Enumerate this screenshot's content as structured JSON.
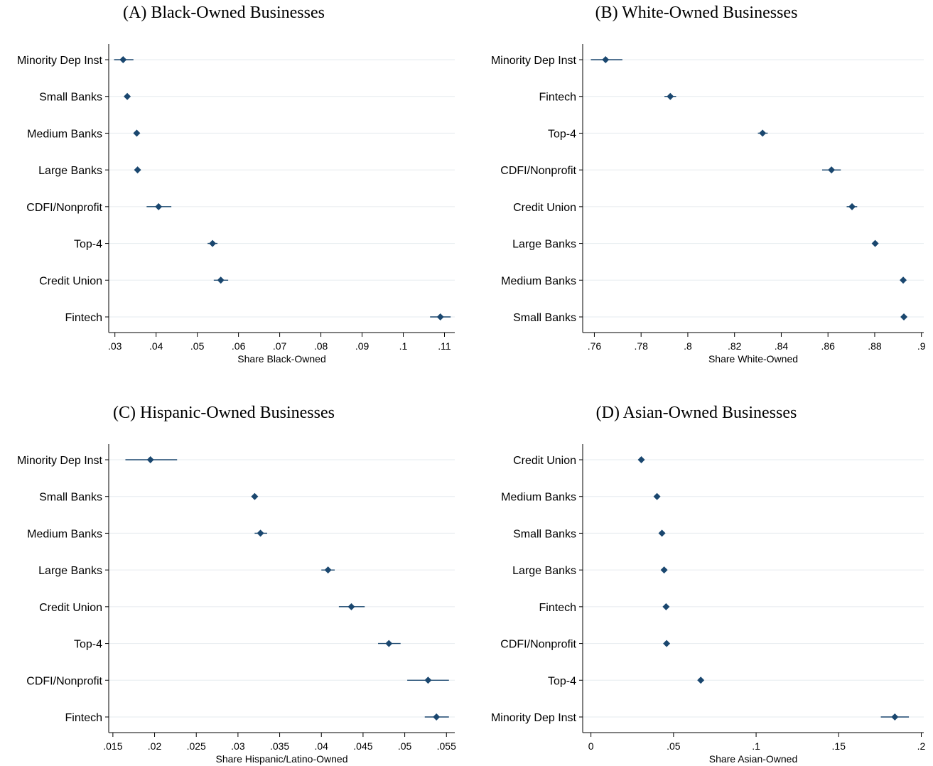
{
  "chart_data": [
    {
      "type": "scatter",
      "title": "(A) Black-Owned Businesses",
      "xlabel": "Share Black-Owned",
      "xlim": [
        0.0285,
        0.1125
      ],
      "xticks": [
        ".03",
        ".04",
        ".05",
        ".06",
        ".07",
        ".08",
        ".09",
        ".1",
        ".11"
      ],
      "xtick_values": [
        0.03,
        0.04,
        0.05,
        0.06,
        0.07,
        0.08,
        0.09,
        0.1,
        0.11
      ],
      "categories": [
        "Minority Dep Inst",
        "Small Banks",
        "Medium Banks",
        "Large Banks",
        "CDFI/Nonprofit",
        "Top-4",
        "Credit Union",
        "Fintech"
      ],
      "values": [
        0.032,
        0.033,
        0.0353,
        0.0355,
        0.0406,
        0.0537,
        0.0557,
        0.109
      ],
      "ci_low": [
        0.0298,
        0.0325,
        0.0347,
        0.0348,
        0.0377,
        0.0525,
        0.054,
        0.1065
      ],
      "ci_high": [
        0.0345,
        0.0335,
        0.0359,
        0.0362,
        0.0437,
        0.0549,
        0.0575,
        0.1115
      ]
    },
    {
      "type": "scatter",
      "title": "(B) White-Owned Businesses",
      "xlabel": "Share White-Owned",
      "xlim": [
        0.755,
        0.901
      ],
      "xticks": [
        ".76",
        ".78",
        ".8",
        ".82",
        ".84",
        ".86",
        ".88",
        ".9"
      ],
      "xtick_values": [
        0.76,
        0.78,
        0.8,
        0.82,
        0.84,
        0.86,
        0.88,
        0.9
      ],
      "categories": [
        "Minority Dep Inst",
        "Fintech",
        "Top-4",
        "CDFI/Nonprofit",
        "Credit Union",
        "Large Banks",
        "Medium Banks",
        "Small Banks"
      ],
      "values": [
        0.7648,
        0.7925,
        0.832,
        0.8615,
        0.8703,
        0.8802,
        0.8922,
        0.8925
      ],
      "ci_low": [
        0.7585,
        0.79,
        0.83,
        0.8575,
        0.868,
        0.8795,
        0.8915,
        0.8918
      ],
      "ci_high": [
        0.772,
        0.795,
        0.8342,
        0.8655,
        0.8725,
        0.881,
        0.893,
        0.8932
      ]
    },
    {
      "type": "scatter",
      "title": "(C) Hispanic-Owned Businesses",
      "xlabel": "Share Hispanic/Latino-Owned",
      "xlim": [
        0.0145,
        0.056
      ],
      "xticks": [
        ".015",
        ".02",
        ".025",
        ".03",
        ".035",
        ".04",
        ".045",
        ".05",
        ".055"
      ],
      "xtick_values": [
        0.015,
        0.02,
        0.025,
        0.03,
        0.035,
        0.04,
        0.045,
        0.05,
        0.055
      ],
      "categories": [
        "Minority Dep Inst",
        "Small Banks",
        "Medium Banks",
        "Large Banks",
        "Credit Union",
        "Top-4",
        "CDFI/Nonprofit",
        "Fintech"
      ],
      "values": [
        0.0195,
        0.032,
        0.0327,
        0.0408,
        0.0436,
        0.0481,
        0.0528,
        0.0538
      ],
      "ci_low": [
        0.0165,
        0.0317,
        0.032,
        0.04,
        0.0421,
        0.0468,
        0.0503,
        0.0524
      ],
      "ci_high": [
        0.0227,
        0.0323,
        0.0335,
        0.0416,
        0.0452,
        0.0495,
        0.0553,
        0.0553
      ]
    },
    {
      "type": "scatter",
      "title": "(D) Asian-Owned Businesses",
      "xlabel": "Share Asian-Owned",
      "xlim": [
        -0.005,
        0.2015
      ],
      "xticks": [
        "0",
        ".05",
        ".1",
        ".15",
        ".2"
      ],
      "xtick_values": [
        0,
        0.05,
        0.1,
        0.15,
        0.2
      ],
      "categories": [
        "Credit Union",
        "Medium Banks",
        "Small Banks",
        "Large Banks",
        "Fintech",
        "CDFI/Nonprofit",
        "Top-4",
        "Minority Dep Inst"
      ],
      "values": [
        0.0305,
        0.04,
        0.043,
        0.0443,
        0.0455,
        0.0458,
        0.0665,
        0.184
      ],
      "ci_low": [
        0.0298,
        0.0395,
        0.0425,
        0.0438,
        0.0448,
        0.0445,
        0.0655,
        0.1755
      ],
      "ci_high": [
        0.0312,
        0.0405,
        0.0435,
        0.0448,
        0.0462,
        0.047,
        0.0675,
        0.1925
      ]
    }
  ]
}
